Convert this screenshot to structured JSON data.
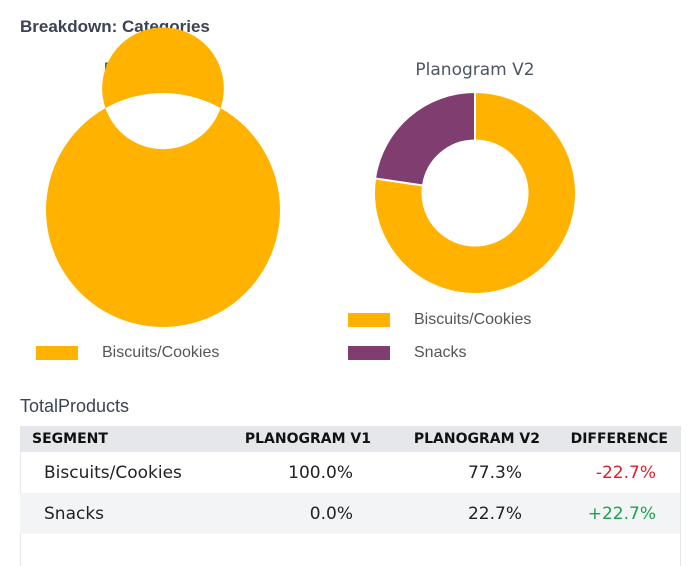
{
  "header": {
    "title": "Breakdown: Categories"
  },
  "colors": {
    "biscuits": "#ffb300",
    "snacks": "#803d6f",
    "negative": "#e11d2a",
    "positive": "#16a34a"
  },
  "chart_data": [
    {
      "type": "pie",
      "variant": "donut",
      "title": "Planogram V1",
      "categories": [
        "Biscuits/Cookies"
      ],
      "values": [
        100.0
      ],
      "colors": [
        "#ffb300"
      ],
      "legend": [
        "Biscuits/Cookies"
      ],
      "legend_position": "bottom"
    },
    {
      "type": "pie",
      "variant": "donut",
      "title": "Planogram V2",
      "categories": [
        "Biscuits/Cookies",
        "Snacks"
      ],
      "values": [
        77.3,
        22.7
      ],
      "colors": [
        "#ffb300",
        "#803d6f"
      ],
      "legend": [
        "Biscuits/Cookies",
        "Snacks"
      ],
      "legend_position": "bottom"
    }
  ],
  "table": {
    "title": "TotalProducts",
    "columns": [
      "SEGMENT",
      "PLANOGRAM V1",
      "PLANOGRAM V2",
      "DIFFERENCE"
    ],
    "rows": [
      {
        "segment": "Biscuits/Cookies",
        "v1": "100.0%",
        "v2": "77.3%",
        "diff": "-22.7%"
      },
      {
        "segment": "Snacks",
        "v1": "0.0%",
        "v2": "22.7%",
        "diff": "+22.7%"
      }
    ]
  }
}
